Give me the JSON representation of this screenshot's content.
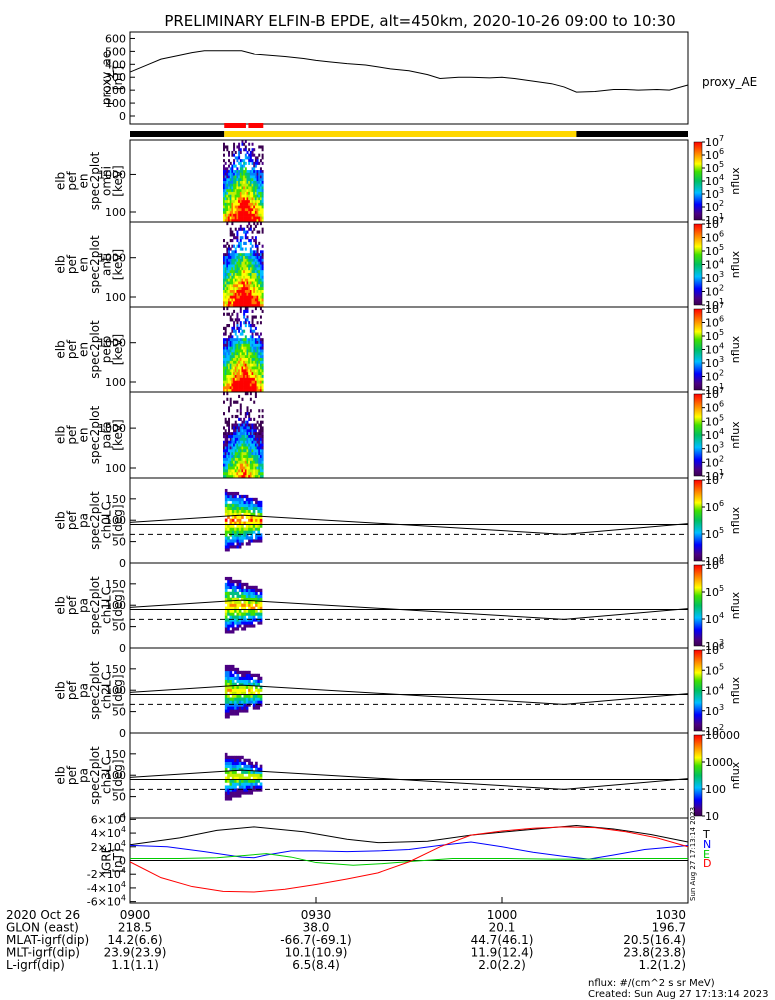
{
  "title": "PRELIMINARY ELFIN-B EPDE, alt=450km, 2020-10-26 09:00 to 10:30",
  "colors": {
    "ae_line": "#000000",
    "phase_black": "#000000",
    "phase_yellow": "#ffd700",
    "phase_red": "#ff0000",
    "igrf_black": "#000000",
    "igrf_blue": "#0000ff",
    "igrf_green": "#00cc00",
    "igrf_red": "#ff0000"
  },
  "chart_data": [
    {
      "type": "line",
      "panel": "proxy_ae",
      "ylabel": [
        "proxy_ae",
        "[nT]"
      ],
      "series_label": "proxy_AE",
      "yticks": [
        "0",
        "100",
        "200",
        "300",
        "400",
        "500",
        "600"
      ],
      "ylim": [
        0,
        650
      ],
      "x_minutes": [
        0,
        3,
        5,
        8,
        10,
        12,
        15,
        18,
        20,
        25,
        28,
        30,
        32,
        35,
        38,
        40,
        42,
        45,
        48,
        50,
        53,
        55,
        58,
        60,
        62,
        65,
        68,
        70,
        72,
        75,
        78,
        80,
        82,
        85,
        87,
        90
      ],
      "values": [
        340,
        400,
        440,
        470,
        490,
        505,
        505,
        505,
        480,
        460,
        445,
        430,
        420,
        405,
        395,
        380,
        365,
        350,
        320,
        290,
        300,
        300,
        295,
        300,
        290,
        270,
        250,
        225,
        185,
        190,
        205,
        205,
        200,
        205,
        200,
        240
      ]
    },
    {
      "type": "phase_bar",
      "segments": [
        {
          "start": 0,
          "end": 15.2,
          "color": "phase_black"
        },
        {
          "start": 15.2,
          "end": 72.0,
          "color": "phase_yellow"
        },
        {
          "start": 72.0,
          "end": 90,
          "color": "phase_black"
        }
      ],
      "red_segments": [
        {
          "start": 15.2,
          "end": 18.7
        },
        {
          "start": 19.1,
          "end": 21.5
        }
      ]
    },
    {
      "type": "heatmap",
      "panel": "omni",
      "ylabel": [
        "elb",
        "pef",
        "en",
        "spec2plot",
        "omni",
        "[keV]"
      ],
      "yticks": [
        "100",
        "1000"
      ],
      "colorbar": {
        "label": "nflux",
        "ticks": [
          "10^1",
          "10^2",
          "10^3",
          "10^4",
          "10^5",
          "10^6",
          "10^7"
        ],
        "scale": "log"
      },
      "x_minutes": [
        15.0,
        21.5
      ]
    },
    {
      "type": "heatmap",
      "panel": "anti",
      "ylabel": [
        "elb",
        "pef",
        "en",
        "spec2plot",
        "anti",
        "[keV]"
      ],
      "yticks": [
        "100",
        "1000"
      ],
      "colorbar": {
        "label": "nflux",
        "ticks": [
          "10^1",
          "10^2",
          "10^3",
          "10^4",
          "10^5",
          "10^6",
          "10^7"
        ],
        "scale": "log"
      },
      "x_minutes": [
        15.0,
        21.5
      ]
    },
    {
      "type": "heatmap",
      "panel": "perp",
      "ylabel": [
        "elb",
        "pef",
        "en",
        "spec2plot",
        "perp",
        "[keV]"
      ],
      "yticks": [
        "100",
        "1000"
      ],
      "colorbar": {
        "label": "nflux",
        "ticks": [
          "10^1",
          "10^2",
          "10^3",
          "10^4",
          "10^5",
          "10^6",
          "10^7"
        ],
        "scale": "log"
      },
      "x_minutes": [
        15.0,
        21.5
      ]
    },
    {
      "type": "heatmap",
      "panel": "para",
      "ylabel": [
        "elb",
        "pef",
        "en",
        "spec2plot",
        "para",
        "[keV]"
      ],
      "yticks": [
        "100",
        "1000"
      ],
      "colorbar": {
        "label": "nflux",
        "ticks": [
          "10^1",
          "10^2",
          "10^3",
          "10^4",
          "10^5",
          "10^6",
          "10^7"
        ],
        "scale": "log"
      },
      "x_minutes": [
        15.0,
        21.5
      ]
    },
    {
      "type": "heatmap",
      "panel": "ch0LC",
      "ylabel": [
        "elb",
        "pef",
        "pa",
        "spec2plot",
        "ch0LC",
        "[deg]"
      ],
      "yticks": [
        "0",
        "50",
        "100",
        "150"
      ],
      "ylim": [
        0,
        180
      ],
      "colorbar": {
        "label": "nflux",
        "ticks": [
          "10^4",
          "10^5",
          "10^6",
          "10^7"
        ],
        "scale": "log"
      },
      "lc_minutes": [
        0,
        18,
        70,
        90
      ],
      "lc_values": [
        95,
        112,
        67,
        92
      ],
      "alc_values": [
        67,
        67,
        67,
        67
      ],
      "line_90": 90
    },
    {
      "type": "heatmap",
      "panel": "ch1LC",
      "ylabel": [
        "elb",
        "pef",
        "pa",
        "spec2plot",
        "ch1LC",
        "[deg]"
      ],
      "yticks": [
        "0",
        "50",
        "100",
        "150"
      ],
      "ylim": [
        0,
        180
      ],
      "colorbar": {
        "label": "nflux",
        "ticks": [
          "10^3",
          "10^4",
          "10^5",
          "10^6"
        ],
        "scale": "log"
      },
      "lc_minutes": [
        0,
        18,
        70,
        90
      ],
      "lc_values": [
        95,
        112,
        67,
        92
      ],
      "alc_values": [
        67,
        67,
        67,
        67
      ],
      "line_90": 90
    },
    {
      "type": "heatmap",
      "panel": "ch2LC",
      "ylabel": [
        "elb",
        "pef",
        "pa",
        "spec2plot",
        "ch2LC",
        "[deg]"
      ],
      "yticks": [
        "0",
        "50",
        "100",
        "150"
      ],
      "ylim": [
        0,
        180
      ],
      "colorbar": {
        "label": "nflux",
        "ticks": [
          "10^2",
          "10^3",
          "10^4",
          "10^5",
          "10^6"
        ],
        "scale": "log"
      },
      "lc_minutes": [
        0,
        18,
        70,
        90
      ],
      "lc_values": [
        95,
        112,
        67,
        92
      ],
      "alc_values": [
        67,
        67,
        67,
        67
      ],
      "line_90": 90
    },
    {
      "type": "heatmap",
      "panel": "ch3LC",
      "ylabel": [
        "elb",
        "pef",
        "pa",
        "spec2plot",
        "ch3LC",
        "[deg]"
      ],
      "yticks": [
        "0",
        "50",
        "100",
        "150"
      ],
      "ylim": [
        0,
        180
      ],
      "colorbar": {
        "label": "nflux",
        "ticks": [
          "10",
          "100",
          "1000",
          "10000"
        ],
        "scale": "log"
      },
      "lc_minutes": [
        0,
        18,
        70,
        90
      ],
      "lc_values": [
        95,
        112,
        67,
        92
      ],
      "alc_values": [
        67,
        67,
        67,
        67
      ],
      "line_90": 90
    },
    {
      "type": "line",
      "panel": "IGRF",
      "ylabel": [
        "IGRF",
        "[nT]"
      ],
      "yticks": [
        "-6×10^4",
        "-4×10^4",
        "-2×10^4",
        "0",
        "2×10^4",
        "4×10^4",
        "6×10^4"
      ],
      "ylim": [
        -62000,
        62000
      ],
      "legend_letters": [
        "T",
        "N",
        "E",
        "D"
      ],
      "series": [
        {
          "name": "T",
          "color": "igrf_black",
          "x": [
            0,
            8,
            14,
            20,
            28,
            35,
            40,
            48,
            55,
            62,
            68,
            72,
            78,
            84,
            90
          ],
          "y": [
            23000,
            33000,
            44000,
            49000,
            42000,
            31000,
            26000,
            28000,
            37000,
            43000,
            48000,
            51000,
            46000,
            38000,
            27000
          ]
        },
        {
          "name": "N",
          "color": "igrf_blue",
          "x": [
            0,
            6,
            12,
            18,
            20,
            22,
            26,
            30,
            35,
            40,
            45,
            50,
            55,
            60,
            65,
            70,
            74,
            78,
            83,
            88,
            90
          ],
          "y": [
            22000,
            20000,
            13000,
            5000,
            4000,
            8000,
            14000,
            14000,
            13000,
            14000,
            16000,
            22000,
            27000,
            20000,
            12000,
            6000,
            2000,
            8000,
            16000,
            20000,
            22000
          ]
        },
        {
          "name": "E",
          "color": "igrf_green",
          "x": [
            0,
            8,
            14,
            18,
            22,
            26,
            30,
            36,
            40,
            46,
            52,
            60,
            68,
            74,
            80,
            86,
            90
          ],
          "y": [
            3000,
            3000,
            4000,
            7000,
            10000,
            5000,
            -3000,
            -7000,
            -5000,
            -1000,
            3000,
            3000,
            2000,
            2000,
            3000,
            3000,
            3000
          ]
        },
        {
          "name": "D",
          "color": "igrf_red",
          "x": [
            0,
            5,
            10,
            15,
            20,
            25,
            30,
            35,
            40,
            45,
            50,
            55,
            60,
            65,
            70,
            75,
            80,
            85,
            90
          ],
          "y": [
            -2000,
            -25000,
            -38000,
            -45000,
            -46000,
            -42000,
            -35000,
            -27000,
            -18000,
            -2000,
            20000,
            37000,
            43000,
            47000,
            49000,
            48000,
            42000,
            33000,
            20000
          ]
        }
      ]
    }
  ],
  "xaxis": {
    "rows": [
      {
        "label": "2020 Oct 26",
        "values": [
          "0900",
          "0930",
          "1000",
          "1030"
        ]
      },
      {
        "label": "GLON (east)",
        "values": [
          "218.5",
          "38.0",
          "20.1",
          "196.7"
        ]
      },
      {
        "label": "MLAT-igrf(dip)",
        "values": [
          "14.2(6.6)",
          "-66.7(-69.1)",
          "44.7(46.1)",
          "20.5(16.4)"
        ]
      },
      {
        "label": "MLT-igrf(dip)",
        "values": [
          "23.9(23.9)",
          "10.1(10.9)",
          "11.9(12.4)",
          "23.8(23.8)"
        ]
      },
      {
        "label": "L-igrf(dip)",
        "values": [
          "1.1(1.1)",
          "6.5(8.4)",
          "2.0(2.2)",
          "1.2(1.2)"
        ]
      }
    ]
  },
  "footer": {
    "units": "nflux: #/(cm^2 s sr MeV)",
    "created": "Created: Sun Aug 27 17:13:14 2023"
  },
  "side_stamp": "Sun Aug 27 17:13:14 2023"
}
